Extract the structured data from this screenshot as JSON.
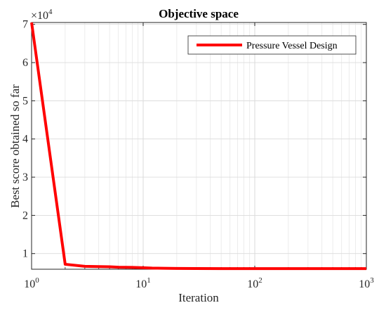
{
  "chart_data": {
    "type": "line",
    "title": "Objective space",
    "xlabel": "Iteration",
    "ylabel": "Best score obtained so far",
    "x_scale": "log",
    "xlim": [
      1,
      1000
    ],
    "ylim": [
      5900,
      70500
    ],
    "y_multiplier": "×10",
    "y_multiplier_exp": "4",
    "x_ticks": [
      {
        "value": 1,
        "base": "10",
        "exp": "0"
      },
      {
        "value": 10,
        "base": "10",
        "exp": "1"
      },
      {
        "value": 100,
        "base": "10",
        "exp": "2"
      },
      {
        "value": 1000,
        "base": "10",
        "exp": "3"
      }
    ],
    "y_ticks": [
      {
        "value": 10000,
        "label": "1"
      },
      {
        "value": 20000,
        "label": "2"
      },
      {
        "value": 30000,
        "label": "3"
      },
      {
        "value": 40000,
        "label": "4"
      },
      {
        "value": 50000,
        "label": "5"
      },
      {
        "value": 60000,
        "label": "6"
      },
      {
        "value": 70000,
        "label": "7"
      }
    ],
    "grid": true,
    "legend_position": "top-right",
    "series": [
      {
        "name": "Pressure Vessel Design",
        "color": "#ff0000",
        "x": [
          1,
          2,
          3,
          4,
          5,
          6,
          8,
          10,
          12,
          15,
          20,
          30,
          50,
          100,
          200,
          500,
          1000
        ],
        "y": [
          70500,
          7200,
          6650,
          6600,
          6550,
          6430,
          6380,
          6300,
          6200,
          6150,
          6100,
          6080,
          6070,
          6060,
          6060,
          6060,
          6060
        ]
      }
    ]
  }
}
